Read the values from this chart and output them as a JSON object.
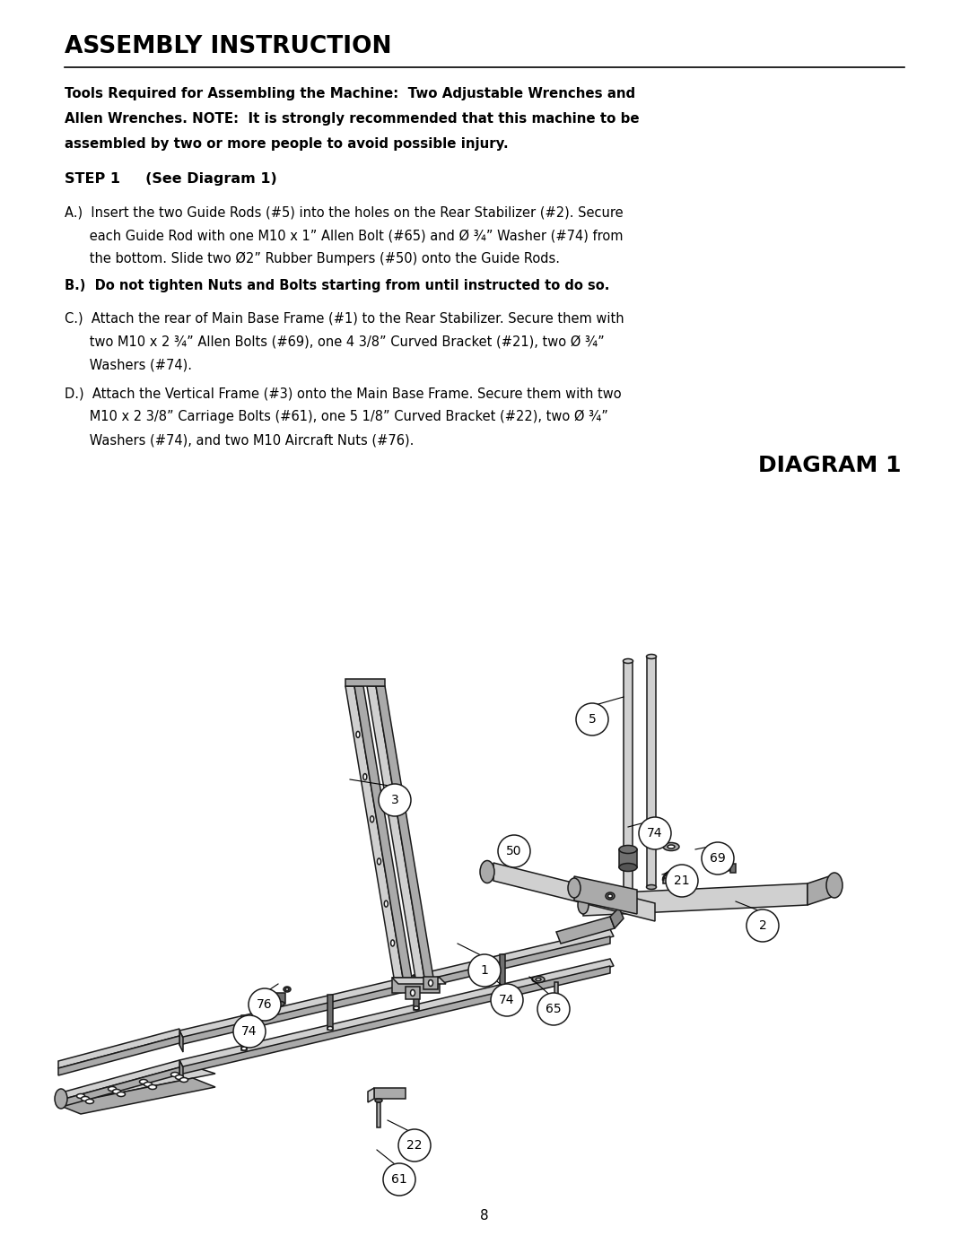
{
  "title": "ASSEMBLY INSTRUCTION",
  "tools_text_bold": "Tools Required for Assembling the Machine:  Two Adjustable Wrenches and Allen Wrenches. NOTE:  It is strongly recommended that this machine to be assembled by two or more people to avoid possible injury.",
  "step_header": "STEP 1     (See Diagram 1)",
  "step_A_normal": "A.)  Insert the two Guide Rods (#5) into the holes on the Rear Stabilizer (#2). Secure\n       each Guide Rod with one M10 x 1” Allen Bolt (#65) and Ø ¾” Washer (#74) from\n       the bottom. Slide two Ø2” Rubber Bumpers (#50) onto the Guide Rods.",
  "step_B_bold": "B.)  Do not tighten Nuts and Bolts starting from until instructed to do so.",
  "step_C_normal": "C.)  Attach the rear of Main Base Frame (#1) to the Rear Stabilizer. Secure them with\n       two M10 x 2 ¾” Allen Bolts (#69), one 4 3/8” Curved Bracket (#21), two Ø ¾”\n       Washers (#74).",
  "step_D_normal": "D.)  Attach the Vertical Frame (#3) onto the Main Base Frame. Secure them with two\n       M10 x 2 3/8” Carriage Bolts (#61), one 5 1/8” Curved Bracket (#22), two Ø ¾”\n       Washers (#74), and two M10 Aircraft Nuts (#76).",
  "diagram_title": "DIAGRAM 1",
  "page_number": "8",
  "bg_color": "#ffffff",
  "text_color": "#000000",
  "c_light": "#d0d0d0",
  "c_mid": "#aaaaaa",
  "c_dark": "#707070",
  "c_edge": "#1a1a1a",
  "labels": [
    [
      660,
      595,
      "5"
    ],
    [
      440,
      505,
      "3"
    ],
    [
      573,
      448,
      "50"
    ],
    [
      730,
      468,
      "74"
    ],
    [
      800,
      440,
      "69"
    ],
    [
      760,
      415,
      "21"
    ],
    [
      850,
      365,
      "2"
    ],
    [
      540,
      315,
      "1"
    ],
    [
      565,
      282,
      "74"
    ],
    [
      617,
      272,
      "65"
    ],
    [
      295,
      277,
      "76"
    ],
    [
      278,
      247,
      "74"
    ],
    [
      462,
      120,
      "22"
    ],
    [
      445,
      82,
      "61"
    ]
  ],
  "leader_lines": [
    [
      660,
      610,
      695,
      620
    ],
    [
      440,
      520,
      390,
      528
    ],
    [
      573,
      463,
      560,
      450
    ],
    [
      730,
      483,
      700,
      475
    ],
    [
      800,
      455,
      775,
      450
    ],
    [
      760,
      430,
      738,
      422
    ],
    [
      850,
      380,
      820,
      392
    ],
    [
      540,
      330,
      510,
      345
    ],
    [
      565,
      294,
      545,
      310
    ],
    [
      617,
      284,
      590,
      308
    ],
    [
      295,
      290,
      310,
      300
    ],
    [
      278,
      260,
      285,
      270
    ],
    [
      462,
      133,
      432,
      148
    ],
    [
      445,
      95,
      420,
      115
    ]
  ]
}
